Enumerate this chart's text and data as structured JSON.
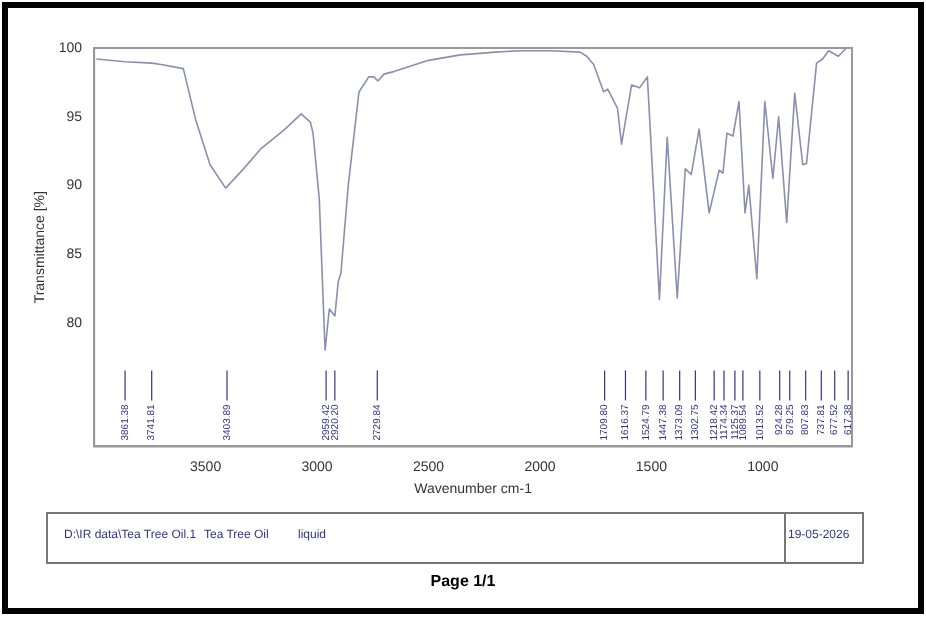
{
  "chart_data": {
    "type": "line",
    "xlabel": "Wavenumber cm-1",
    "ylabel": "Transmittance [%]",
    "xlim": [
      4000,
      600
    ],
    "xticks": [
      3500,
      3000,
      2500,
      2000,
      1500,
      1000
    ],
    "ylim": [
      71,
      100
    ],
    "yticks": [
      80,
      85,
      90,
      95,
      100
    ],
    "grid": false,
    "legend": false,
    "marker": "none",
    "line_style": "solid",
    "series": [
      {
        "color": "#8a8fb0",
        "x": [
          3990,
          3861.38,
          3741.81,
          3700,
          3600,
          3545,
          3480,
          3410,
          3330,
          3250,
          3150,
          3071,
          3030,
          3018,
          2990,
          2964,
          2945,
          2920,
          2905,
          2893,
          2860,
          2812,
          2768,
          2745,
          2727,
          2700,
          2652,
          2500,
          2357,
          2200,
          2089,
          1950,
          1821,
          1790,
          1759,
          1714,
          1696,
          1652,
          1634,
          1589,
          1553,
          1518,
          1464,
          1429,
          1384,
          1348,
          1321,
          1286,
          1241,
          1196,
          1179,
          1161,
          1134,
          1107,
          1080,
          1063,
          1027,
          991,
          955,
          929,
          893,
          857,
          821,
          804,
          759,
          732,
          705,
          661,
          625
        ],
        "values": [
          99.2,
          99.0,
          98.9,
          98.8,
          98.5,
          94.8,
          91.5,
          89.8,
          91.2,
          92.7,
          94.0,
          95.2,
          94.6,
          93.8,
          89.0,
          78.0,
          81.0,
          80.5,
          83.0,
          83.6,
          90.0,
          96.8,
          97.9,
          97.9,
          97.6,
          98.1,
          98.3,
          99.1,
          99.5,
          99.7,
          99.8,
          99.8,
          99.7,
          99.4,
          98.8,
          96.8,
          97.0,
          95.6,
          93.0,
          97.3,
          97.1,
          97.9,
          81.7,
          93.5,
          81.8,
          91.2,
          90.8,
          94.1,
          88.0,
          91.1,
          90.9,
          93.8,
          93.6,
          96.1,
          88.0,
          90.0,
          83.2,
          96.1,
          90.5,
          95.0,
          87.3,
          96.7,
          91.5,
          91.6,
          98.9,
          99.2,
          99.8,
          99.4,
          100
        ]
      }
    ],
    "annotations": [
      {
        "text": "3861.38",
        "x": 3861.38
      },
      {
        "text": "3741.81",
        "x": 3741.81
      },
      {
        "text": "3403.89",
        "x": 3403.89
      },
      {
        "text": "2959.42",
        "x": 2959.42
      },
      {
        "text": "2920.20",
        "x": 2920.2
      },
      {
        "text": "2729.84",
        "x": 2729.84
      },
      {
        "text": "1709.80",
        "x": 1709.8
      },
      {
        "text": "1616.37",
        "x": 1616.37
      },
      {
        "text": "1524.79",
        "x": 1524.79
      },
      {
        "text": "1447.38",
        "x": 1447.38
      },
      {
        "text": "1373.09",
        "x": 1373.09
      },
      {
        "text": "1302.75",
        "x": 1302.75
      },
      {
        "text": "1218.42",
        "x": 1218.42
      },
      {
        "text": "1174.34",
        "x": 1174.34
      },
      {
        "text": "1125.37",
        "x": 1125.37
      },
      {
        "text": "1089.54",
        "x": 1089.54
      },
      {
        "text": "1013.52",
        "x": 1013.52
      },
      {
        "text": "924.28",
        "x": 924.28
      },
      {
        "text": "879.25",
        "x": 879.25
      },
      {
        "text": "807.83",
        "x": 807.83
      },
      {
        "text": "737.81",
        "x": 737.81
      },
      {
        "text": "677.52",
        "x": 677.52
      },
      {
        "text": "617.38",
        "x": 617.38
      },
      "D:\\IR data\\Tea Tree Oil.1",
      "Tea Tree Oil",
      "liquid",
      "19-05-2026",
      "Page 1/1"
    ]
  }
}
